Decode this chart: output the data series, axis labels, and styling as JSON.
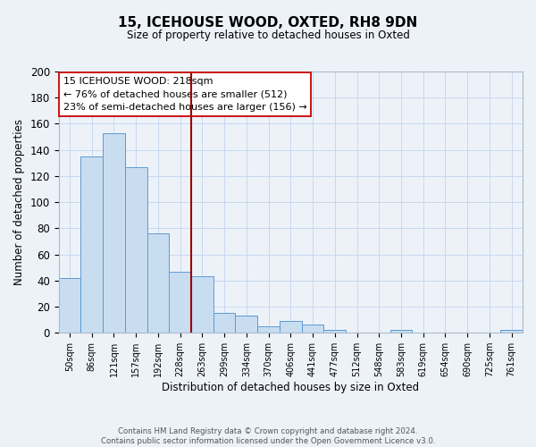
{
  "title": "15, ICEHOUSE WOOD, OXTED, RH8 9DN",
  "subtitle": "Size of property relative to detached houses in Oxted",
  "xlabel": "Distribution of detached houses by size in Oxted",
  "ylabel": "Number of detached properties",
  "bar_labels": [
    "50sqm",
    "86sqm",
    "121sqm",
    "157sqm",
    "192sqm",
    "228sqm",
    "263sqm",
    "299sqm",
    "334sqm",
    "370sqm",
    "406sqm",
    "441sqm",
    "477sqm",
    "512sqm",
    "548sqm",
    "583sqm",
    "619sqm",
    "654sqm",
    "690sqm",
    "725sqm",
    "761sqm"
  ],
  "bar_heights": [
    42,
    135,
    153,
    127,
    76,
    47,
    43,
    15,
    13,
    5,
    9,
    6,
    2,
    0,
    0,
    2,
    0,
    0,
    0,
    0,
    2
  ],
  "bar_color": "#c9ddf0",
  "bar_edge_color": "#5b9bd5",
  "vline_x": 5.5,
  "vline_color": "#990000",
  "annotation_lines": [
    "15 ICEHOUSE WOOD: 218sqm",
    "← 76% of detached houses are smaller (512)",
    "23% of semi-detached houses are larger (156) →"
  ],
  "ylim": [
    0,
    200
  ],
  "yticks": [
    0,
    20,
    40,
    60,
    80,
    100,
    120,
    140,
    160,
    180,
    200
  ],
  "footer_lines": [
    "Contains HM Land Registry data © Crown copyright and database right 2024.",
    "Contains public sector information licensed under the Open Government Licence v3.0."
  ],
  "background_color": "#edf2f9",
  "plot_bg_color": "#edf2f9",
  "grid_color": "#c8d8ee"
}
